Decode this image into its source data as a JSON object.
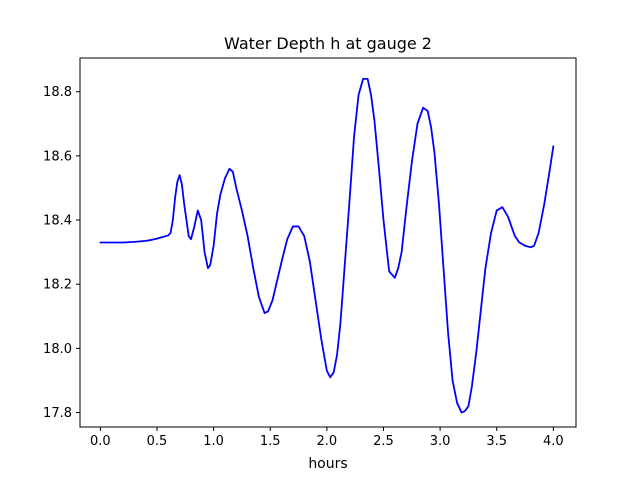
{
  "chart_data": {
    "type": "line",
    "title": "Water Depth h at gauge 2",
    "xlabel": "hours",
    "ylabel": "",
    "xlim": [
      -0.18,
      4.2
    ],
    "ylim": [
      17.755,
      18.905
    ],
    "xticks": [
      0.0,
      0.5,
      1.0,
      1.5,
      2.0,
      2.5,
      3.0,
      3.5,
      4.0
    ],
    "xtick_labels": [
      "0.0",
      "0.5",
      "1.0",
      "1.5",
      "2.0",
      "2.5",
      "3.0",
      "3.5",
      "4.0"
    ],
    "yticks": [
      17.8,
      18.0,
      18.2,
      18.4,
      18.6,
      18.8
    ],
    "ytick_labels": [
      "17.8",
      "18.0",
      "18.2",
      "18.4",
      "18.6",
      "18.8"
    ],
    "grid": false,
    "legend": false,
    "series": [
      {
        "color": "#0000ff",
        "x": [
          0.0,
          0.1,
          0.2,
          0.3,
          0.4,
          0.45,
          0.5,
          0.55,
          0.6,
          0.62,
          0.64,
          0.66,
          0.68,
          0.7,
          0.72,
          0.74,
          0.76,
          0.78,
          0.8,
          0.83,
          0.86,
          0.89,
          0.92,
          0.95,
          0.97,
          1.0,
          1.03,
          1.06,
          1.1,
          1.14,
          1.17,
          1.2,
          1.25,
          1.3,
          1.35,
          1.4,
          1.45,
          1.48,
          1.52,
          1.56,
          1.6,
          1.65,
          1.7,
          1.75,
          1.8,
          1.85,
          1.9,
          1.95,
          2.0,
          2.03,
          2.06,
          2.09,
          2.12,
          2.16,
          2.2,
          2.24,
          2.28,
          2.32,
          2.36,
          2.39,
          2.42,
          2.46,
          2.5,
          2.55,
          2.6,
          2.63,
          2.66,
          2.7,
          2.75,
          2.8,
          2.85,
          2.89,
          2.92,
          2.95,
          2.99,
          3.03,
          3.07,
          3.11,
          3.15,
          3.19,
          3.22,
          3.25,
          3.28,
          3.32,
          3.36,
          3.4,
          3.45,
          3.5,
          3.55,
          3.6,
          3.63,
          3.66,
          3.7,
          3.75,
          3.8,
          3.83,
          3.87,
          3.92,
          3.97,
          4.0
        ],
        "y": [
          18.33,
          18.33,
          18.33,
          18.332,
          18.335,
          18.338,
          18.342,
          18.347,
          18.352,
          18.36,
          18.4,
          18.47,
          18.52,
          18.54,
          18.51,
          18.45,
          18.4,
          18.35,
          18.34,
          18.38,
          18.43,
          18.4,
          18.3,
          18.25,
          18.26,
          18.32,
          18.42,
          18.48,
          18.53,
          18.56,
          18.55,
          18.5,
          18.43,
          18.35,
          18.25,
          18.16,
          18.11,
          18.115,
          18.15,
          18.21,
          18.27,
          18.34,
          18.38,
          18.38,
          18.35,
          18.27,
          18.15,
          18.03,
          17.93,
          17.91,
          17.925,
          17.98,
          18.08,
          18.27,
          18.46,
          18.66,
          18.79,
          18.84,
          18.84,
          18.79,
          18.71,
          18.56,
          18.4,
          18.24,
          18.22,
          18.25,
          18.3,
          18.43,
          18.58,
          18.7,
          18.75,
          18.74,
          18.69,
          18.61,
          18.45,
          18.25,
          18.05,
          17.9,
          17.83,
          17.8,
          17.805,
          17.82,
          17.88,
          17.99,
          18.12,
          18.25,
          18.36,
          18.43,
          18.44,
          18.41,
          18.38,
          18.35,
          18.33,
          18.32,
          18.315,
          18.32,
          18.36,
          18.45,
          18.56,
          18.63
        ]
      }
    ]
  }
}
